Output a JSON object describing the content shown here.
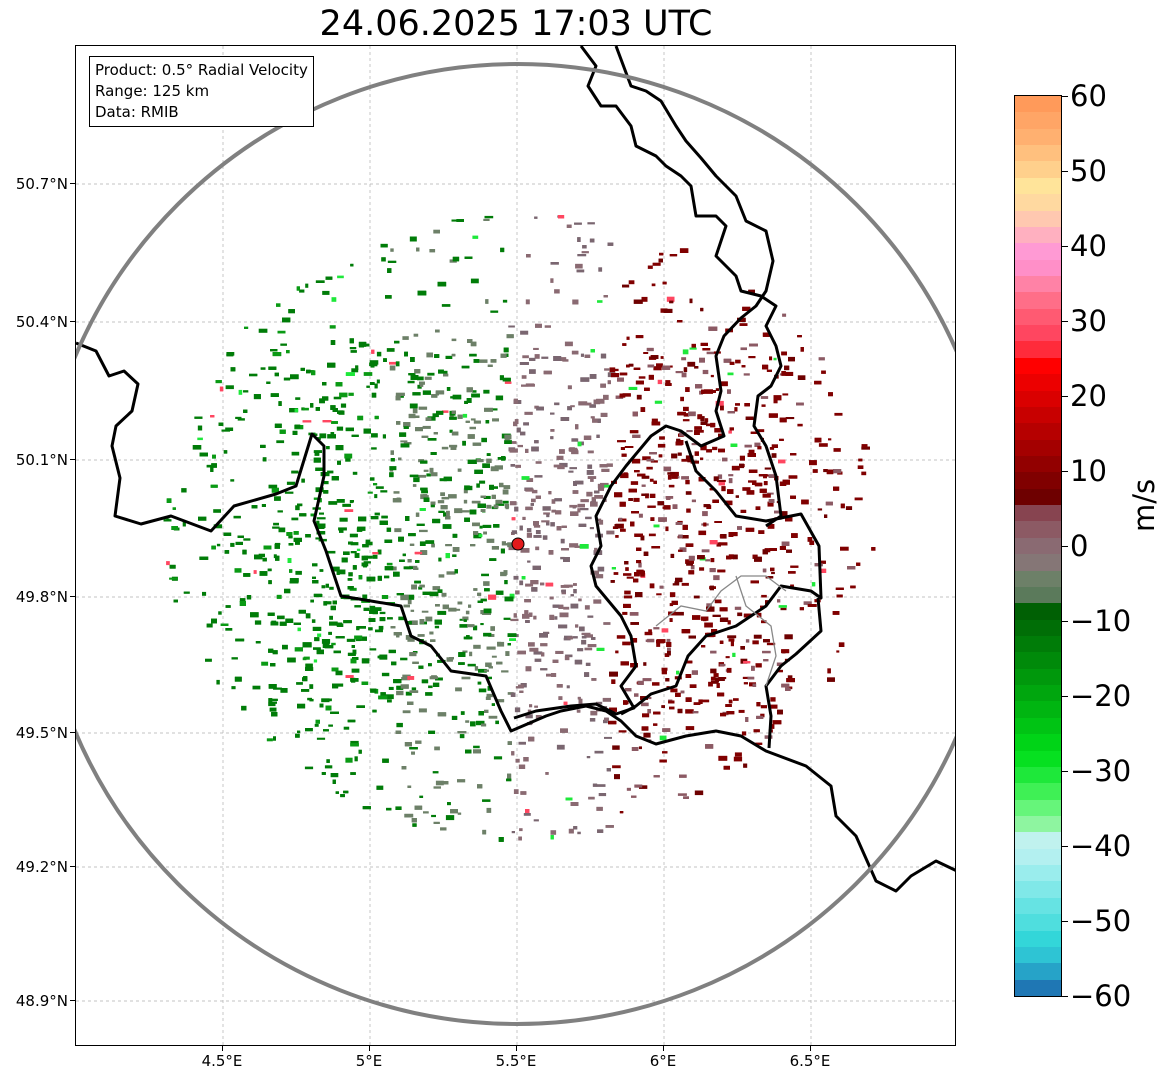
{
  "title": "24.06.2025 17:03 UTC",
  "info": {
    "product": "Product: 0.5° Radial Velocity",
    "range": "Range: 125 km",
    "source": "Data: RMIB"
  },
  "axes": {
    "y_ticks": [
      "50.7°N",
      "50.4°N",
      "50.1°N",
      "49.8°N",
      "49.5°N",
      "49.2°N",
      "48.9°N"
    ],
    "x_ticks": [
      "4.5°E",
      "5°E",
      "5.5°E",
      "6°E",
      "6.5°E"
    ]
  },
  "colorbar": {
    "unit": "m/s",
    "ticks": [
      "60",
      "50",
      "40",
      "30",
      "20",
      "10",
      "0",
      "−10",
      "−20",
      "−30",
      "−40",
      "−50",
      "−60"
    ],
    "min": -60,
    "max": 60,
    "colors": [
      "#1f77b4",
      "#26a3c8",
      "#2ec4d4",
      "#33d6d9",
      "#4fdede",
      "#66e3e3",
      "#80e8e8",
      "#9aeded",
      "#b3f0f0",
      "#c0f2ee",
      "#8ef5a0",
      "#66f57a",
      "#3ff055",
      "#1ee83a",
      "#06e020",
      "#00d417",
      "#00c414",
      "#00b511",
      "#00a60e",
      "#00980c",
      "#008a0a",
      "#007c08",
      "#006e06",
      "#006004",
      "#5b7a5b",
      "#6d8068",
      "#857676",
      "#8a6a72",
      "#8c5a64",
      "#874450",
      "#6e0000",
      "#800000",
      "#920000",
      "#a40000",
      "#b60000",
      "#c80000",
      "#da0000",
      "#ec0000",
      "#ff0000",
      "#ff2b3b",
      "#ff4660",
      "#ff5a72",
      "#ff6e88",
      "#ff82a6",
      "#ff8fc8",
      "#ff9ad4",
      "#ffb0c0",
      "#ffc8b0",
      "#ffd9a0",
      "#ffe49a",
      "#ffd08c",
      "#ffc07e",
      "#ffb070",
      "#ffa566",
      "#ff9a5a"
    ]
  },
  "radar_site": {
    "label": "",
    "color": "#ff0000"
  },
  "colors": {
    "outbound": "#800000",
    "inbound": "#007c08",
    "near_zero_out": "#8a6a72",
    "near_zero_in": "#6d8068",
    "range_ring": "#808080",
    "border": "#000000"
  }
}
